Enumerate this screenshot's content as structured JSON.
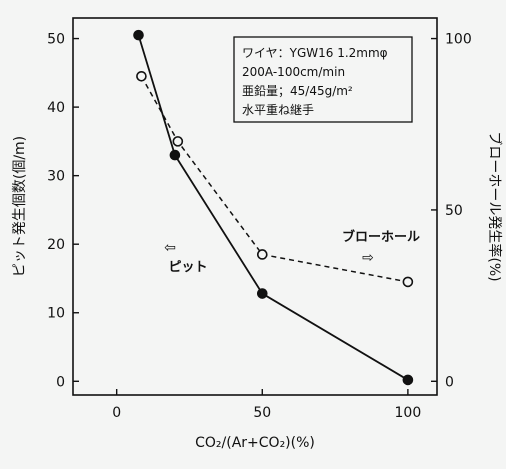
{
  "chart_data": {
    "type": "line",
    "x": [
      7.5,
      21,
      50,
      100
    ],
    "xlabel": "CO₂/(Ar+CO₂)(%)",
    "xlim": [
      -15,
      110
    ],
    "xticks": [
      0,
      50,
      100
    ],
    "ylabel_left": "ピット発生個数(個/m)",
    "ylim_left": [
      -2,
      53
    ],
    "yticks_left": [
      0,
      10,
      20,
      30,
      40,
      50
    ],
    "ylabel_right": "ブローホール発生率(%)",
    "ylim_right": [
      -4,
      106
    ],
    "yticks_right": [
      0,
      50,
      100
    ],
    "series": [
      {
        "name": "ピット",
        "axis": "left",
        "style": "solid",
        "marker": "filled-circle",
        "x": [
          7.5,
          20,
          50,
          100
        ],
        "values": [
          50.5,
          33,
          12.8,
          0.2
        ]
      },
      {
        "name": "ブローホール",
        "axis": "right",
        "style": "dashed",
        "marker": "open-circle",
        "x": [
          8.5,
          21,
          50,
          100
        ],
        "values": [
          89,
          70,
          37,
          29
        ]
      }
    ],
    "info_box": [
      "ワイヤ：YGW16 1.2mmφ",
      "200A-100cm/min",
      "亜鉛量；45/45g/m²",
      "水平重ね継手"
    ],
    "annotations": [
      {
        "text": "ピット",
        "arrow": "⇦"
      },
      {
        "text": "ブローホール",
        "arrow": "⇨"
      }
    ],
    "grid": false
  }
}
